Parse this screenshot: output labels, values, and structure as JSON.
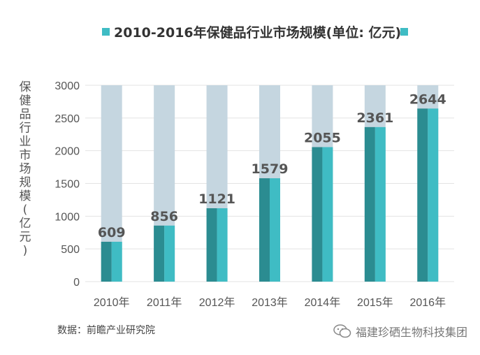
{
  "chart_data": {
    "type": "bar",
    "title": "2010-2016年保健品行业市场规模(单位: 亿元)",
    "ylabel": "保健品行业市场规模 (亿元)",
    "categories": [
      "2010年",
      "2011年",
      "2012年",
      "2013年",
      "2014年",
      "2015年",
      "2016年"
    ],
    "values": [
      609,
      856,
      1121,
      1579,
      2055,
      2361,
      2644
    ],
    "ylim": [
      0,
      3000
    ],
    "yticks": [
      0,
      500,
      1000,
      1500,
      2000,
      2500,
      3000
    ],
    "grid": true,
    "legend": "top",
    "colors": {
      "bar_left": "#2b8c91",
      "bar_right": "#3fbcc4",
      "track": "#c5d6e0",
      "legend_marker": "#3fbcc4"
    }
  },
  "footer": {
    "source": "数据：前瞻产业研究院",
    "brand": "福建珍硒生物科技集团",
    "brand_icon": "wechat-icon"
  }
}
